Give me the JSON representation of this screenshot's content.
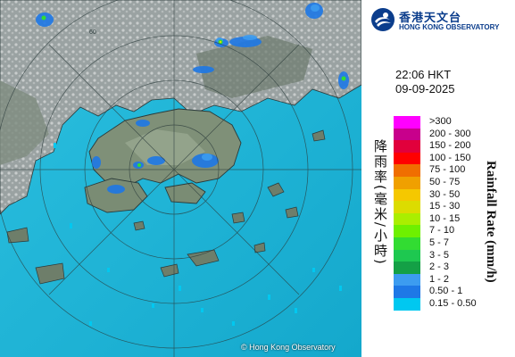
{
  "header": {
    "org_name_zh": "香港天文台",
    "org_name_en": "HONG KONG OBSERVATORY",
    "logo_icon": "hko-logo-icon"
  },
  "timestamp": {
    "time": "22:06 HKT",
    "date": "09-09-2025"
  },
  "legend": {
    "title_zh": "降雨率(毫米/小時)",
    "title_en": "Rainfall Rate (mm/h)",
    "items": [
      {
        "label": ">300",
        "color": "#ff00ff"
      },
      {
        "label": "200 - 300",
        "color": "#c8008c"
      },
      {
        "label": "150 - 200",
        "color": "#e1003c"
      },
      {
        "label": "100 - 150",
        "color": "#ff0000"
      },
      {
        "label": "75 - 100",
        "color": "#f06e00"
      },
      {
        "label": "50 - 75",
        "color": "#f0a000"
      },
      {
        "label": "30 - 50",
        "color": "#f5c800"
      },
      {
        "label": "15 - 30",
        "color": "#dcdc00"
      },
      {
        "label": "10 - 15",
        "color": "#aaee00"
      },
      {
        "label": "7 - 10",
        "color": "#6ef000"
      },
      {
        "label": "5 - 7",
        "color": "#32dc32"
      },
      {
        "label": "3 - 5",
        "color": "#1ec850"
      },
      {
        "label": "2 - 3",
        "color": "#14a046"
      },
      {
        "label": "1 - 2",
        "color": "#3c9cf0"
      },
      {
        "label": "0.50 - 1",
        "color": "#1e78e6"
      },
      {
        "label": "0.15 - 0.50",
        "color": "#00c8f0"
      }
    ]
  },
  "map": {
    "copyright": "© Hong Kong Observatory",
    "sea_color": "#1fb6d8",
    "land_color": "#8c9a8a",
    "range_ring_labels": [
      "60"
    ]
  }
}
